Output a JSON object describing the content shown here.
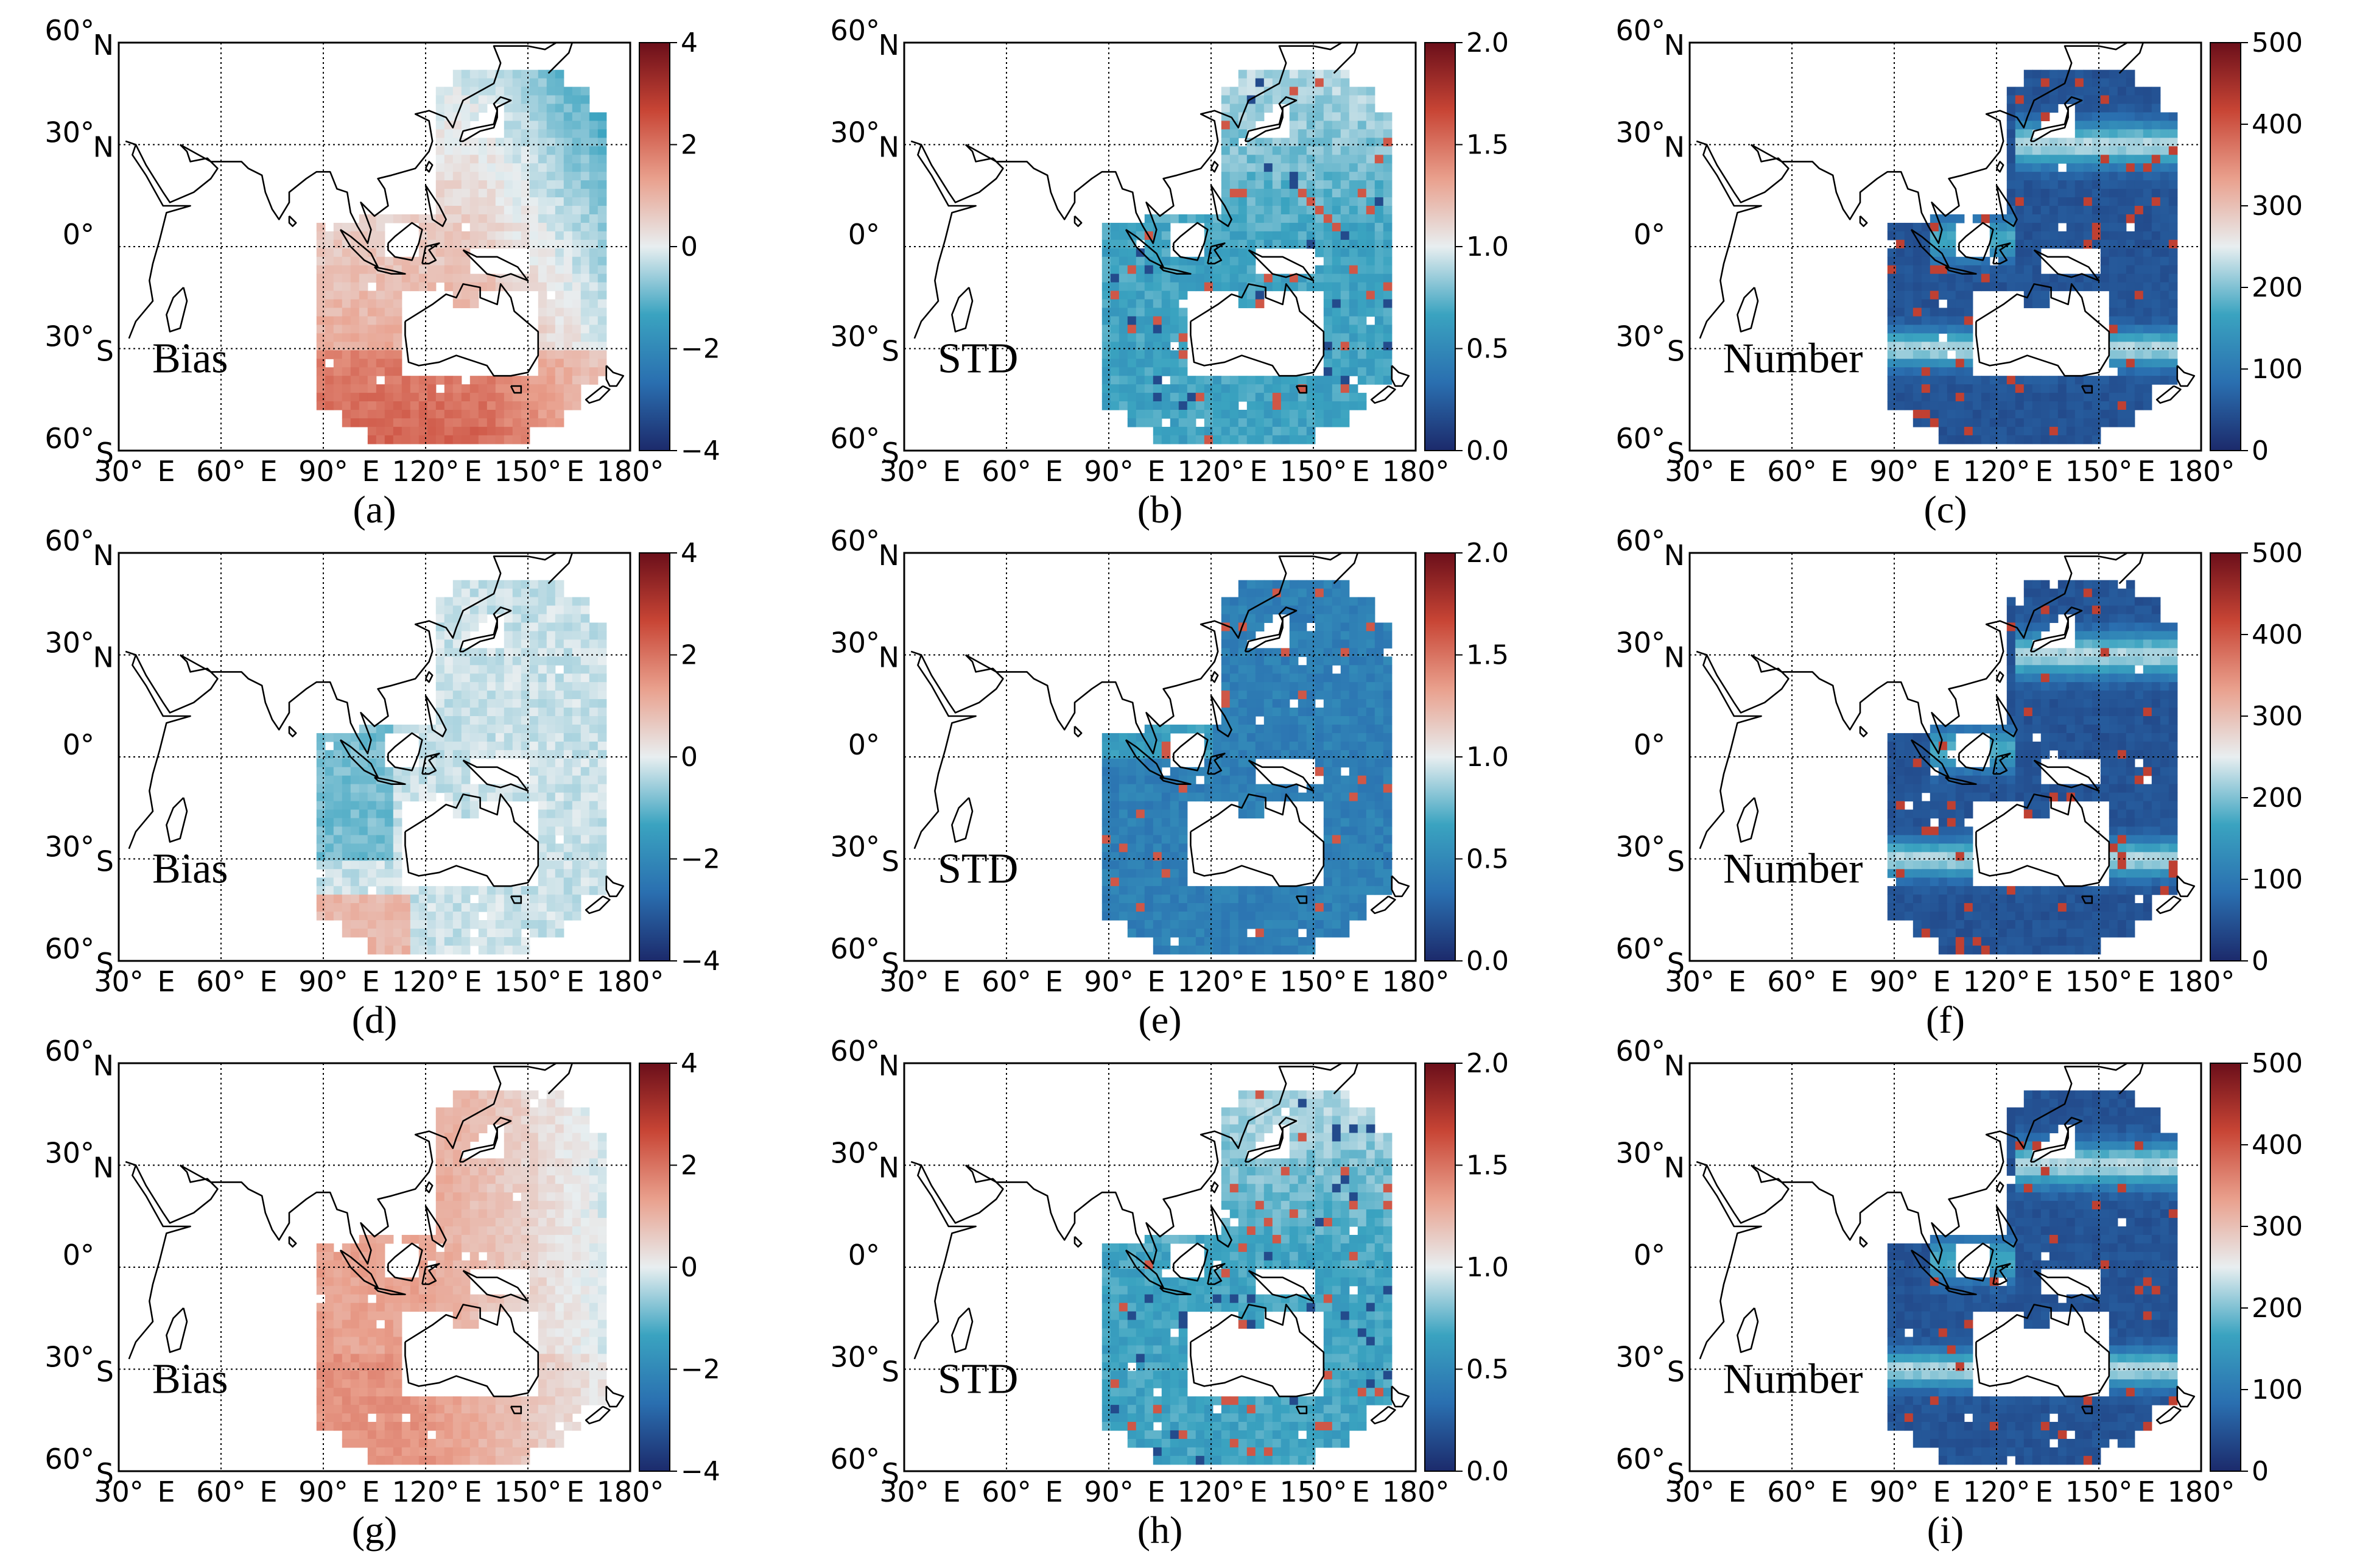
{
  "figure": {
    "axes": {
      "lat_ticks": [
        "60° N",
        "30° N",
        "0°",
        "30° S",
        "60° S"
      ],
      "lon_ticks": [
        "30° E",
        "60° E",
        "90° E",
        "120° E",
        "150° E",
        "180°"
      ]
    },
    "colors": {
      "diverging": [
        "#1c2a6b",
        "#2a6fb0",
        "#3aa3c0",
        "#e8eef0",
        "#e9a08d",
        "#c84535",
        "#6b0f1a"
      ],
      "land": "#ffffff",
      "coast": "#000000",
      "grid": "#000000"
    },
    "panels": [
      {
        "label": "(a)",
        "inset": "Bias",
        "kind": "bias",
        "mean": 0.5,
        "pattern": "a",
        "colorbar": {
          "ticks": [
            "4",
            "2",
            "0",
            "−2",
            "−4"
          ],
          "min": -4,
          "max": 4
        }
      },
      {
        "label": "(b)",
        "inset": "STD",
        "kind": "std",
        "mean": 0.6,
        "pattern": "b",
        "colorbar": {
          "ticks": [
            "2.0",
            "1.5",
            "1.0",
            "0.5",
            "0.0"
          ],
          "min": 0,
          "max": 2
        }
      },
      {
        "label": "(c)",
        "inset": "Number",
        "kind": "count",
        "mean": 110,
        "pattern": "c",
        "colorbar": {
          "ticks": [
            "500",
            "400",
            "300",
            "200",
            "100",
            "0"
          ],
          "min": 0,
          "max": 500
        }
      },
      {
        "label": "(d)",
        "inset": "Bias",
        "kind": "bias",
        "mean": -0.3,
        "pattern": "d",
        "colorbar": {
          "ticks": [
            "4",
            "2",
            "0",
            "−2",
            "−4"
          ],
          "min": -4,
          "max": 4
        }
      },
      {
        "label": "(e)",
        "inset": "STD",
        "kind": "std",
        "mean": 0.4,
        "pattern": "e",
        "colorbar": {
          "ticks": [
            "2.0",
            "1.5",
            "1.0",
            "0.5",
            "0.0"
          ],
          "min": 0,
          "max": 2
        }
      },
      {
        "label": "(f)",
        "inset": "Number",
        "kind": "count",
        "mean": 110,
        "pattern": "c",
        "colorbar": {
          "ticks": [
            "500",
            "400",
            "300",
            "200",
            "100",
            "0"
          ],
          "min": 0,
          "max": 500
        }
      },
      {
        "label": "(g)",
        "inset": "Bias",
        "kind": "bias",
        "mean": 0.8,
        "pattern": "g",
        "colorbar": {
          "ticks": [
            "4",
            "2",
            "0",
            "−2",
            "−4"
          ],
          "min": -4,
          "max": 4
        }
      },
      {
        "label": "(h)",
        "inset": "STD",
        "kind": "std",
        "mean": 0.6,
        "pattern": "b",
        "colorbar": {
          "ticks": [
            "2.0",
            "1.5",
            "1.0",
            "0.5",
            "0.0"
          ],
          "min": 0,
          "max": 2
        }
      },
      {
        "label": "(i)",
        "inset": "Number",
        "kind": "count",
        "mean": 110,
        "pattern": "c",
        "colorbar": {
          "ticks": [
            "500",
            "400",
            "300",
            "200",
            "100",
            "0"
          ],
          "min": 0,
          "max": 500
        }
      }
    ]
  }
}
